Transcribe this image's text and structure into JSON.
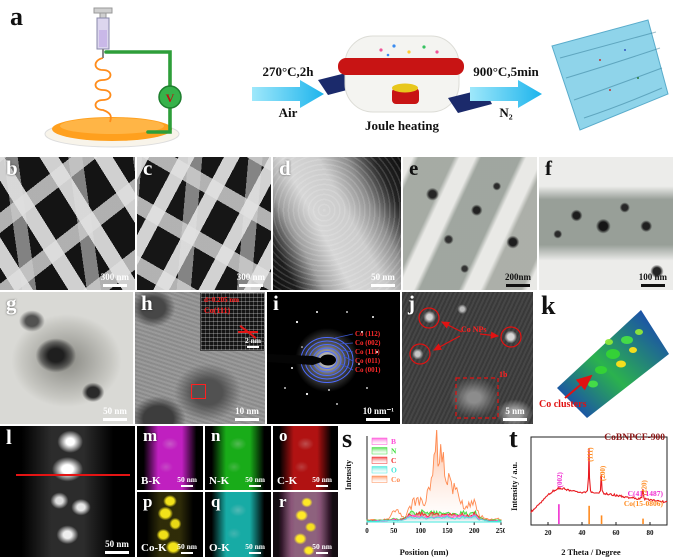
{
  "panel_a": {
    "label": "a",
    "voltage_symbol": "V",
    "step1": {
      "condition": "270°C,2h",
      "atmosphere": "Air"
    },
    "step2": {
      "condition": "900°C,5min",
      "atmosphere": "N₂"
    },
    "device_label": "Joule heating"
  },
  "panels": {
    "b": {
      "label": "b",
      "scale_bar": "300 nm"
    },
    "c": {
      "label": "c",
      "scale_bar": "300 nm"
    },
    "d": {
      "label": "d",
      "scale_bar": "50 nm"
    },
    "e": {
      "label": "e",
      "scale_bar": "200nm"
    },
    "f": {
      "label": "f",
      "scale_bar": "100 nm"
    },
    "g": {
      "label": "g",
      "scale_bar": "50 nm"
    },
    "h": {
      "label": "h",
      "scale_bar": "10 nm",
      "inset": {
        "d_spacing": "d=0.205 nm",
        "plane": "Co(111)",
        "scale_bar": "2 nm"
      }
    },
    "i": {
      "label": "i",
      "scale_bar": "10 nm⁻¹",
      "ring_labels": [
        "Co (112)",
        "Co (002)",
        "Co (111)",
        "Co (011)",
        "Co (001)"
      ]
    },
    "j": {
      "label": "j",
      "scale_bar": "5 nm",
      "particle_label": "Co NPs",
      "box_label": "1b"
    },
    "k": {
      "label": "k",
      "annotation": "Co clusters"
    },
    "l": {
      "label": "l",
      "scale_bar": "50 nm"
    },
    "m": {
      "label": "m",
      "element": "B-K",
      "scale_bar": "50 nm"
    },
    "n": {
      "label": "n",
      "element": "N-K",
      "scale_bar": "50 nm"
    },
    "o": {
      "label": "o",
      "element": "C-K",
      "scale_bar": "50 nm"
    },
    "p": {
      "label": "p",
      "element": "Co-K",
      "scale_bar": "50 nm"
    },
    "q": {
      "label": "q",
      "element": "O-K",
      "scale_bar": "50 nm"
    },
    "r": {
      "label": "r",
      "scale_bar": "50 nm"
    },
    "s": {
      "label": "s"
    },
    "t": {
      "label": "t"
    }
  },
  "chart_data": [
    {
      "id": "eds-line-scan",
      "type": "area",
      "xlabel": "Position (nm)",
      "ylabel": "Intensity",
      "xlim": [
        0,
        250
      ],
      "ylim": [
        0,
        110
      ],
      "xticks": [
        0,
        50,
        100,
        150,
        200,
        250
      ],
      "legend_position": "top-left",
      "x": [
        0,
        10,
        20,
        30,
        40,
        50,
        60,
        70,
        80,
        90,
        100,
        110,
        120,
        130,
        140,
        150,
        160,
        170,
        180,
        190,
        200,
        210,
        220,
        230,
        240,
        250
      ],
      "series": [
        {
          "name": "B",
          "color": "#ff4fd8",
          "values": [
            1,
            1,
            2,
            1,
            2,
            3,
            2,
            3,
            8,
            7,
            8,
            6,
            7,
            8,
            7,
            8,
            7,
            7,
            9,
            6,
            10,
            4,
            2,
            1,
            2,
            1
          ]
        },
        {
          "name": "N",
          "color": "#3ddc3d",
          "values": [
            2,
            2,
            3,
            2,
            3,
            4,
            3,
            5,
            12,
            10,
            13,
            10,
            11,
            12,
            10,
            13,
            11,
            10,
            12,
            9,
            13,
            6,
            3,
            2,
            3,
            2
          ]
        },
        {
          "name": "C",
          "color": "#f03030",
          "values": [
            1,
            2,
            2,
            2,
            2,
            3,
            3,
            4,
            10,
            8,
            11,
            9,
            10,
            10,
            9,
            10,
            9,
            8,
            10,
            8,
            10,
            5,
            2,
            2,
            2,
            1
          ]
        },
        {
          "name": "O",
          "color": "#42e8dc",
          "values": [
            1,
            1,
            1,
            2,
            2,
            2,
            2,
            3,
            6,
            5,
            6,
            5,
            6,
            6,
            5,
            6,
            5,
            5,
            6,
            5,
            7,
            3,
            2,
            1,
            1,
            1
          ]
        },
        {
          "name": "Co",
          "color": "#ff8a50",
          "values": [
            2,
            3,
            2,
            3,
            4,
            16,
            12,
            5,
            20,
            26,
            30,
            28,
            48,
            100,
            82,
            60,
            46,
            32,
            22,
            20,
            27,
            9,
            4,
            3,
            5,
            3
          ]
        }
      ]
    },
    {
      "id": "xrd",
      "type": "line",
      "sample_label": "CoBNPCF-900",
      "xlabel": "2 Theta / Degree",
      "ylabel": "Intensity / a.u.",
      "xlim": [
        10,
        90
      ],
      "ylim": [
        0,
        110
      ],
      "xticks": [
        20,
        40,
        60,
        80
      ],
      "curve_color": "#e8191f",
      "curve": [
        [
          10,
          16
        ],
        [
          12,
          20
        ],
        [
          14,
          25
        ],
        [
          16,
          29
        ],
        [
          18,
          33
        ],
        [
          20,
          37
        ],
        [
          22,
          41
        ],
        [
          24,
          44
        ],
        [
          26,
          46
        ],
        [
          28,
          46
        ],
        [
          30,
          45
        ],
        [
          32,
          44
        ],
        [
          34,
          43
        ],
        [
          36,
          42
        ],
        [
          38,
          41
        ],
        [
          40,
          41
        ],
        [
          42,
          41
        ],
        [
          43.2,
          42
        ],
        [
          43.8,
          60
        ],
        [
          44.1,
          97
        ],
        [
          44.4,
          58
        ],
        [
          45,
          42
        ],
        [
          46,
          41
        ],
        [
          48,
          40
        ],
        [
          50,
          40
        ],
        [
          50.8,
          42
        ],
        [
          51.3,
          63
        ],
        [
          51.8,
          43
        ],
        [
          52.5,
          40
        ],
        [
          54,
          39
        ],
        [
          56,
          38
        ],
        [
          58,
          38
        ],
        [
          60,
          37
        ],
        [
          62,
          36
        ],
        [
          64,
          36
        ],
        [
          66,
          35
        ],
        [
          68,
          34
        ],
        [
          70,
          34
        ],
        [
          72,
          33
        ],
        [
          74,
          33
        ],
        [
          75.2,
          34
        ],
        [
          75.8,
          46
        ],
        [
          76.4,
          33
        ],
        [
          78,
          32
        ],
        [
          80,
          31
        ],
        [
          82,
          31
        ],
        [
          84,
          30
        ],
        [
          86,
          30
        ],
        [
          88,
          29
        ],
        [
          90,
          29
        ]
      ],
      "peak_labels": [
        {
          "text": "(002)",
          "x": 26.3,
          "label_top": 66,
          "color": "#f02fd0"
        },
        {
          "text": "(111)",
          "x": 44.2,
          "label_top": 97,
          "color": "#ff8a1e"
        },
        {
          "text": "(200)",
          "x": 51.5,
          "label_top": 74,
          "color": "#ff8a1e"
        },
        {
          "text": "(220)",
          "x": 75.9,
          "label_top": 56,
          "color": "#ff8a1e"
        }
      ],
      "reference_patterns": [
        {
          "name": "C(41-1487)",
          "color": "#f02fd0",
          "sticks": [
            {
              "x": 26.4,
              "h": 26
            }
          ]
        },
        {
          "name": "Co(15-0806)",
          "color": "#ff8a1e",
          "sticks": [
            {
              "x": 44.2,
              "h": 24
            },
            {
              "x": 51.5,
              "h": 12
            },
            {
              "x": 75.9,
              "h": 8
            }
          ]
        }
      ]
    }
  ]
}
